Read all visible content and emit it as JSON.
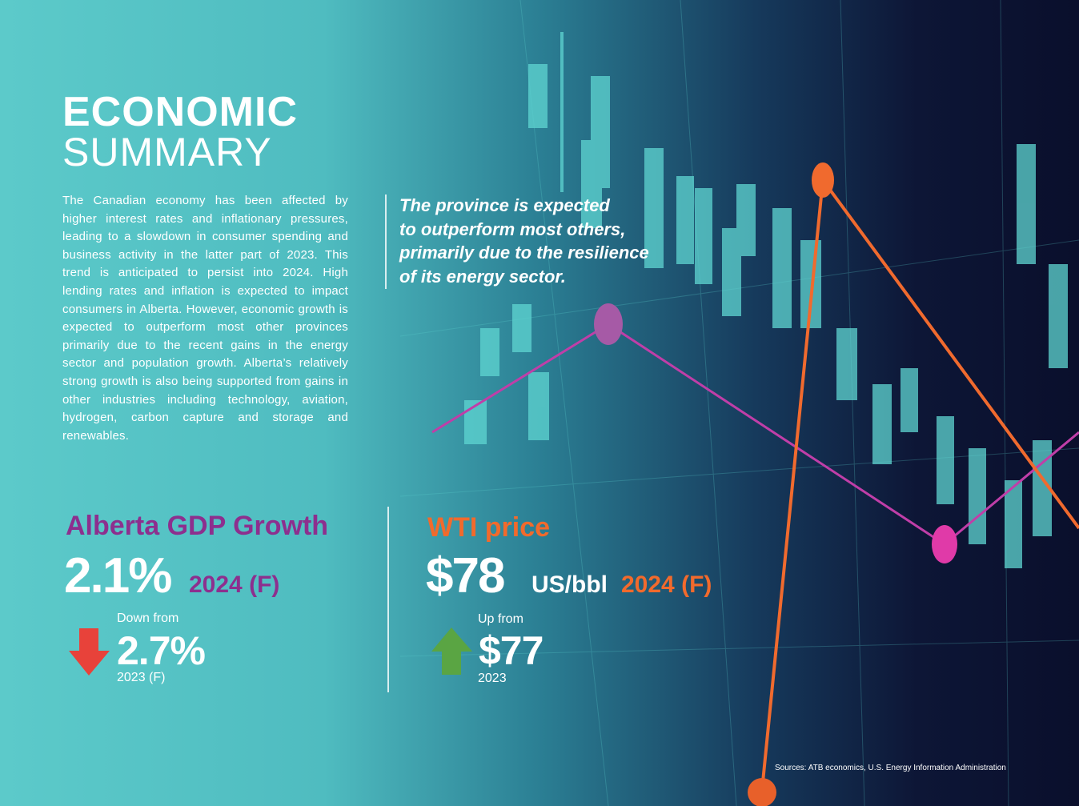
{
  "header": {
    "title_line1": "ECONOMIC",
    "title_line2": "SUMMARY"
  },
  "intro": {
    "body": "The Canadian economy has been affected by higher interest rates and inflationary pressures, leading to a slowdown in consumer spending and business activity in the latter part of 2023. This trend is anticipated to persist into 2024. High lending rates and inflation is expected to impact consumers in Alberta. However, economic growth is expected to outperform most other provinces primarily due to the recent gains in the energy sector and population growth. Alberta’s relatively strong growth is also being supported from gains in other industries including technology, aviation, hydrogen, carbon capture and storage and renewables.",
    "quote_lines": [
      "The province is expected",
      "to outperform most others,",
      "primarily due to the resilience",
      "of its energy sector."
    ]
  },
  "metrics": [
    {
      "title": "Alberta GDP Growth",
      "value": "2.1%",
      "period": "2024 (F)",
      "change_label": "Down from",
      "previous_value": "2.7%",
      "previous_period": "2023 (F)"
    },
    {
      "title": "WTI price",
      "value": "$78",
      "unit": "US/bbl",
      "period": "2024 (F)",
      "change_label": "Up from",
      "previous_value": "$77",
      "previous_period": "2023"
    }
  ],
  "footer": {
    "sources": "Sources: ATB economics, U.S. Energy Information Administration"
  }
}
